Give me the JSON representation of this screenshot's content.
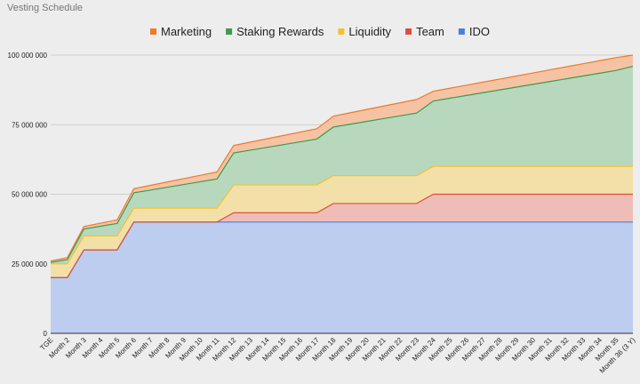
{
  "chart_data": {
    "type": "area",
    "stacked": true,
    "title": "Vesting Schedule",
    "xlabel": "",
    "ylabel": "",
    "ylim": [
      0,
      100000000
    ],
    "yticks": [
      0,
      25000000,
      50000000,
      75000000,
      100000000
    ],
    "ytick_labels": [
      "0",
      "25 000 000",
      "50 000 000",
      "75 000 000",
      "100 000 000"
    ],
    "grid": true,
    "legend_position": "top",
    "categories": [
      "TGE",
      "Month 2",
      "Month 3",
      "Month 4",
      "Month 5",
      "Month 6",
      "Month 7",
      "Month 8",
      "Month 9",
      "Month 10",
      "Month 11",
      "Month 12",
      "Month 13",
      "Month 14",
      "Month 15",
      "Month 16",
      "Month 17",
      "Month 18",
      "Month 19",
      "Month 20",
      "Month 21",
      "Month 22",
      "Month 23",
      "Month 24",
      "Month 25",
      "Month 26",
      "Month 27",
      "Month 28",
      "Month 29",
      "Month 30",
      "Month 31",
      "Month 32",
      "Month 33",
      "Month 34",
      "Month 35",
      "Month 36 (3 Y)"
    ],
    "series": [
      {
        "name": "IDO",
        "color": "#4a7fd8",
        "fill": "#bccdf0",
        "values": [
          20000000,
          20000000,
          30000000,
          30000000,
          30000000,
          40000000,
          40000000,
          40000000,
          40000000,
          40000000,
          40000000,
          40000000,
          40000000,
          40000000,
          40000000,
          40000000,
          40000000,
          40000000,
          40000000,
          40000000,
          40000000,
          40000000,
          40000000,
          40000000,
          40000000,
          40000000,
          40000000,
          40000000,
          40000000,
          40000000,
          40000000,
          40000000,
          40000000,
          40000000,
          40000000,
          40000000
        ]
      },
      {
        "name": "Team",
        "color": "#d9503f",
        "fill": "#eebdb8",
        "values": [
          0,
          0,
          0,
          0,
          0,
          0,
          0,
          0,
          0,
          0,
          0,
          3333333,
          3333333,
          3333333,
          3333333,
          3333333,
          3333333,
          6666667,
          6666667,
          6666667,
          6666667,
          6666667,
          6666667,
          10000000,
          10000000,
          10000000,
          10000000,
          10000000,
          10000000,
          10000000,
          10000000,
          10000000,
          10000000,
          10000000,
          10000000,
          10000000
        ]
      },
      {
        "name": "Liquidity",
        "color": "#f2c32e",
        "fill": "#f3e0a8",
        "values": [
          5000000,
          5000000,
          5000000,
          5000000,
          5000000,
          5000000,
          5000000,
          5000000,
          5000000,
          5000000,
          5000000,
          10000000,
          10000000,
          10000000,
          10000000,
          10000000,
          10000000,
          10000000,
          10000000,
          10000000,
          10000000,
          10000000,
          10000000,
          10000000,
          10000000,
          10000000,
          10000000,
          10000000,
          10000000,
          10000000,
          10000000,
          10000000,
          10000000,
          10000000,
          10000000,
          10000000
        ]
      },
      {
        "name": "Staking Rewards",
        "color": "#3d9a4f",
        "fill": "#b7d8bd",
        "values": [
          500000,
          1500000,
          2500000,
          3500000,
          4500000,
          5500000,
          6500000,
          7500000,
          8500000,
          9500000,
          10500000,
          11500000,
          12500000,
          13500000,
          14500000,
          15500000,
          16500000,
          17500000,
          18500000,
          19500000,
          20500000,
          21500000,
          22500000,
          23500000,
          24500000,
          25500000,
          26500000,
          27500000,
          28500000,
          29500000,
          30500000,
          31500000,
          32500000,
          33500000,
          34500000,
          36000000
        ]
      },
      {
        "name": "Marketing",
        "color": "#ee7a2c",
        "fill": "#f5c3a4",
        "values": [
          500000,
          700000,
          900000,
          1100000,
          1300000,
          1500000,
          1700000,
          1900000,
          2100000,
          2300000,
          2500000,
          2700000,
          2900000,
          3100000,
          3300000,
          3500000,
          3700000,
          3900000,
          4100000,
          4300000,
          4500000,
          4700000,
          4900000,
          3500000,
          3600000,
          3700000,
          3800000,
          3900000,
          4000000,
          4100000,
          4200000,
          4300000,
          4400000,
          4500000,
          4600000,
          4000000
        ]
      }
    ]
  }
}
